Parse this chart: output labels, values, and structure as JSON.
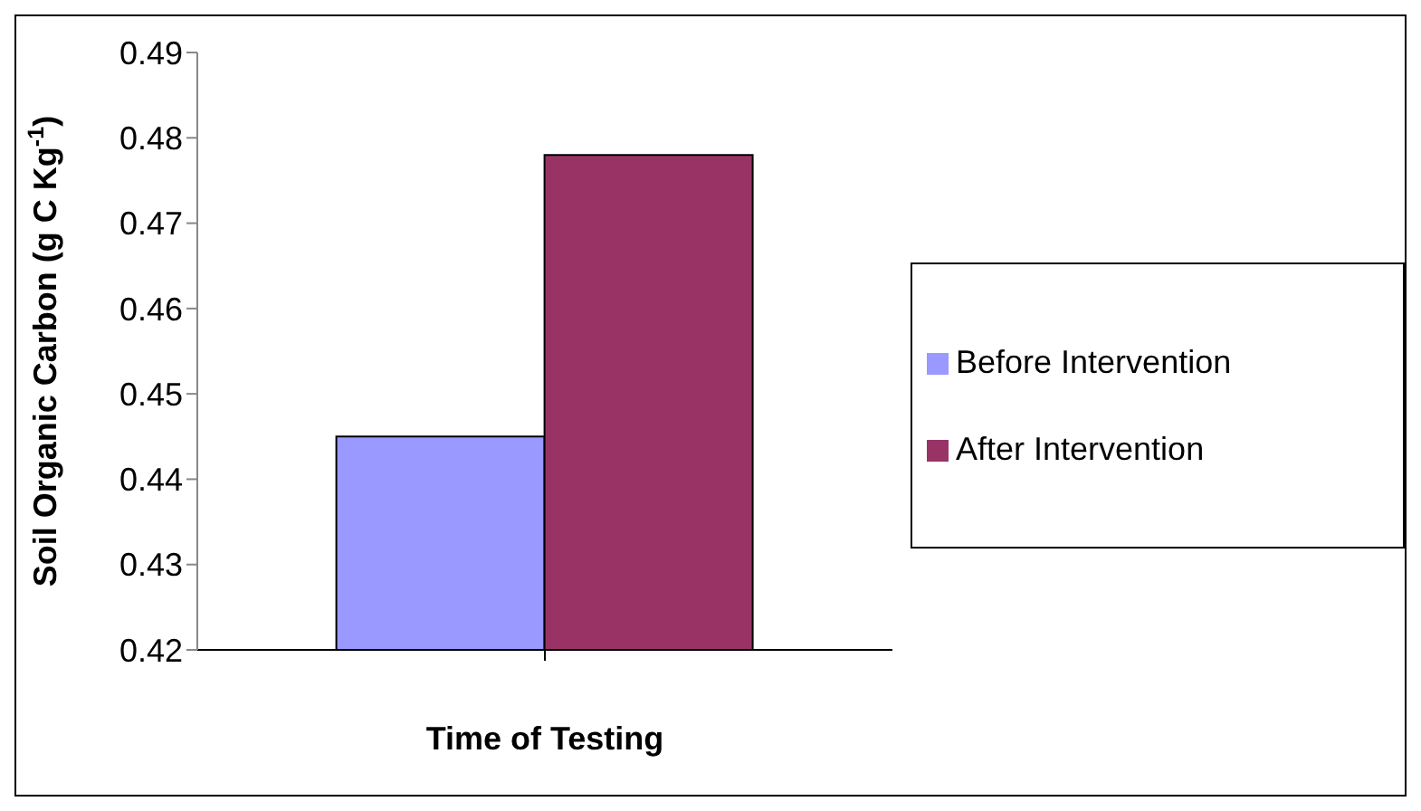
{
  "chart_data": {
    "type": "bar",
    "ylabel": "Soil Organic Carbon (g C Kg$^{-1}$)",
    "xlabel": "Time of Testing",
    "categories": [
      null
    ],
    "series": [
      {
        "name": "Before Intervention",
        "color": "#9999ff",
        "values": [
          0.445
        ]
      },
      {
        "name": "After Intervention",
        "color": "#993366",
        "values": [
          0.478
        ]
      }
    ],
    "ylim": [
      0.42,
      0.49
    ],
    "yticks": [
      0.42,
      0.43,
      0.44,
      0.45,
      0.46,
      0.47,
      0.48,
      0.49
    ],
    "grid": false,
    "legend": "right"
  }
}
